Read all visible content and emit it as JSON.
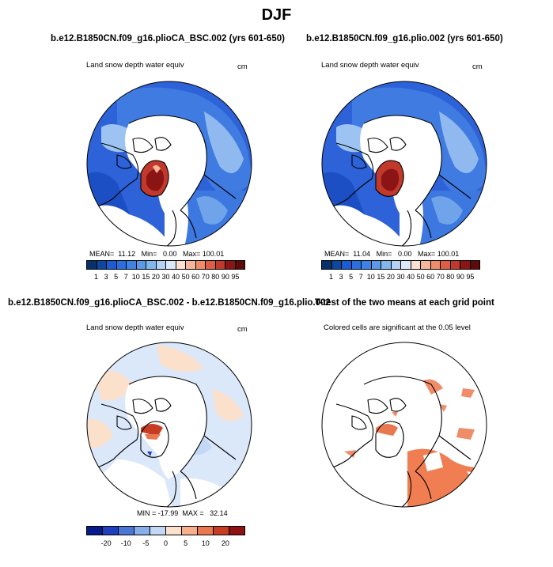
{
  "figure": {
    "title": "DJF"
  },
  "panels": [
    {
      "id": "top-left",
      "title": "b.e12.B1850CN.f09_g16.plioCA_BSC.002 (yrs 601-650)",
      "subtitle": "Land snow depth water equiv",
      "units": "cm",
      "stats": {
        "mean_label": "MEAN=",
        "mean": "11.12",
        "min_label": "Min=",
        "min": "0.00",
        "max_label": "Max=",
        "max": "100.01"
      },
      "colorbar_labels": [
        "1",
        "3",
        "5",
        "7",
        "10",
        "15",
        "20",
        "30",
        "40",
        "50",
        "60",
        "70",
        "80",
        "90",
        "95"
      ]
    },
    {
      "id": "top-right",
      "title": "b.e12.B1850CN.f09_g16.plio.002 (yrs 601-650)",
      "subtitle": "Land snow depth water equiv",
      "units": "cm",
      "stats": {
        "mean_label": "MEAN=",
        "mean": "11.04",
        "min_label": "Min=",
        "min": "0.00",
        "max_label": "Max=",
        "max": "100.01"
      },
      "colorbar_labels": [
        "1",
        "3",
        "5",
        "7",
        "10",
        "15",
        "20",
        "30",
        "40",
        "50",
        "60",
        "70",
        "80",
        "90",
        "95"
      ]
    },
    {
      "id": "bottom-left",
      "title": "b.e12.B1850CN.f09_g16.plioCA_BSC.002 - b.e12.B1850CN.f09_g16.plio.002",
      "subtitle": "Land snow depth water equiv",
      "units": "cm",
      "stats": {
        "min_label": "MIN =",
        "min": "-17.99",
        "max_label": "MAX =",
        "max": "32.14"
      },
      "colorbar_labels": [
        "-20",
        "-10",
        "-5",
        "0",
        "5",
        "10",
        "20"
      ]
    },
    {
      "id": "bottom-right",
      "title": "T-test of the two means at each grid point",
      "subtitle": "Colored cells are significant at the 0.05 level"
    }
  ],
  "colors": {
    "abs_scale": [
      "#08306b",
      "#0d47a1",
      "#1c5bd6",
      "#2a6fe0",
      "#3d82e6",
      "#5b9ae8",
      "#82b6ef",
      "#b5d2f5",
      "#dbe8fa",
      "#fde0cf",
      "#f7b59a",
      "#ef8c6a",
      "#df5d43",
      "#c0392b",
      "#8b1414",
      "#5e0a0a"
    ],
    "diff_scale": [
      "#061a8c",
      "#1f3fbf",
      "#4a76d8",
      "#86aee8",
      "#c3d8f4",
      "#fbe0cc",
      "#f6b08c",
      "#e8784f",
      "#c63d23",
      "#8e1212"
    ],
    "land_outline": "#000000",
    "ocean": "#ffffff"
  }
}
